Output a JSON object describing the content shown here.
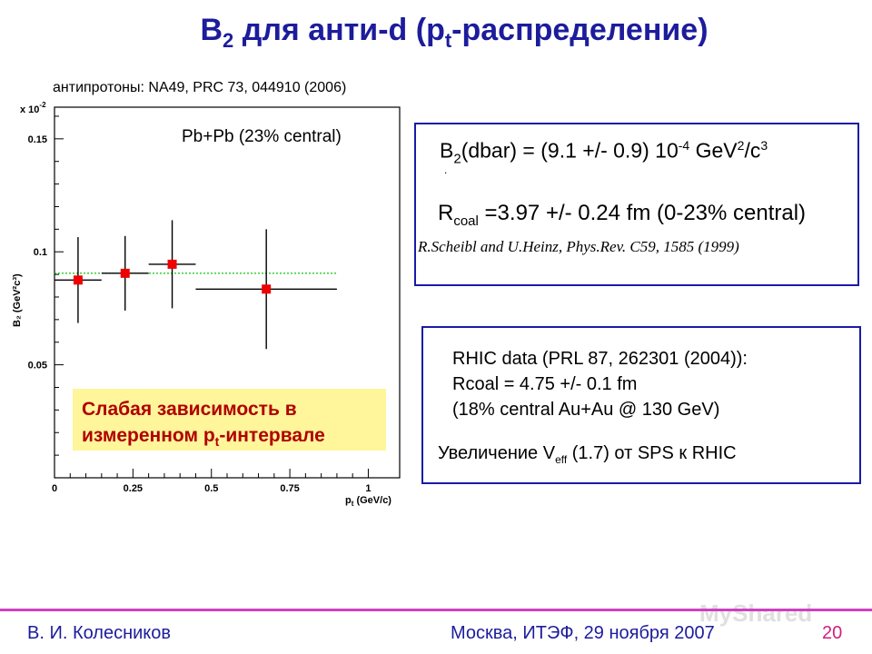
{
  "slide": {
    "title_main": "B",
    "title_sub": "2",
    "title_mid": " для анти-d (p",
    "title_sub2": "t",
    "title_end": "-распределение)",
    "reference_label": "антипротоны: NA49, PRC 73, 044910 (2006)"
  },
  "chart_data": {
    "type": "scatter",
    "title": "",
    "annotation": "Pb+Pb (23% central)",
    "xlabel_main": "p",
    "xlabel_sub": "t",
    "xlabel_unit": " (GeV/c)",
    "ylabel": "B₂ (GeV²c³)",
    "y_multiplier": "x 10",
    "y_multiplier_exp": "-2",
    "xlim": [
      0,
      1.1
    ],
    "ylim": [
      0,
      0.164
    ],
    "x_ticks": [
      0,
      0.25,
      0.5,
      0.75,
      1
    ],
    "x_tick_labels": [
      "0",
      "0.25",
      "0.5",
      "0.75",
      "1"
    ],
    "y_ticks": [
      0.05,
      0.1,
      0.15
    ],
    "y_tick_labels": [
      "0.05",
      "0.1",
      "0.15"
    ],
    "fit_line": {
      "y": 0.0905,
      "color": "#22cc22",
      "style": "dotted"
    },
    "points": [
      {
        "x": 0.075,
        "y": 0.0875,
        "xerr_low": 0.075,
        "xerr_high": 0.075,
        "yerr": 0.019
      },
      {
        "x": 0.225,
        "y": 0.0905,
        "xerr_low": 0.075,
        "xerr_high": 0.075,
        "yerr": 0.0165
      },
      {
        "x": 0.375,
        "y": 0.0945,
        "xerr_low": 0.075,
        "xerr_high": 0.075,
        "yerr": 0.0195
      },
      {
        "x": 0.675,
        "y": 0.0835,
        "xerr_low": 0.225,
        "xerr_high": 0.225,
        "yerr": 0.0265
      }
    ],
    "marker_color": "#ee0000"
  },
  "highlight": {
    "line1": "Слабая зависимость в",
    "line2_pre": "измеренном p",
    "line2_sub": "t",
    "line2_post": "-интервале"
  },
  "box1": {
    "b2_pre": "B",
    "b2_sub": "2",
    "b2_mid": "(dbar) = (9.1 +/- 0.9) 10",
    "b2_exp": "-4",
    "b2_unit": " GeV",
    "b2_unit_exp": "2",
    "b2_unit2": "/c",
    "b2_unit2_exp": "3",
    "dot": ".",
    "rcoal_pre": "R",
    "rcoal_sub": "coal",
    "rcoal_post": " =3.97 +/- 0.24 fm (0-23% central)",
    "citation": "R.Scheibl and U.Heinz, Phys.Rev. C59, 1585 (1999)"
  },
  "box2": {
    "line1": "RHIC data (PRL 87, 262301 (2004)):",
    "line2": "Rcoal = 4.75 +/- 0.1 fm",
    "line3": "(18% central Au+Au @ 130 GeV)",
    "veff_pre": "Увеличение V",
    "veff_sub": "eff",
    "veff_post": " (1.7) от SPS к RHIC"
  },
  "footer": {
    "author": "В. И. Колесников",
    "place": "Москва, ИТЭФ, 29 ноября 2007",
    "page": "20"
  },
  "watermark": "MyShared",
  "colors": {
    "title": "#1c1c9c",
    "box_border": "#1a1aa8",
    "footer_rule": "#d040c0",
    "highlight_bg": "#fff59a",
    "highlight_text": "#b00000"
  }
}
